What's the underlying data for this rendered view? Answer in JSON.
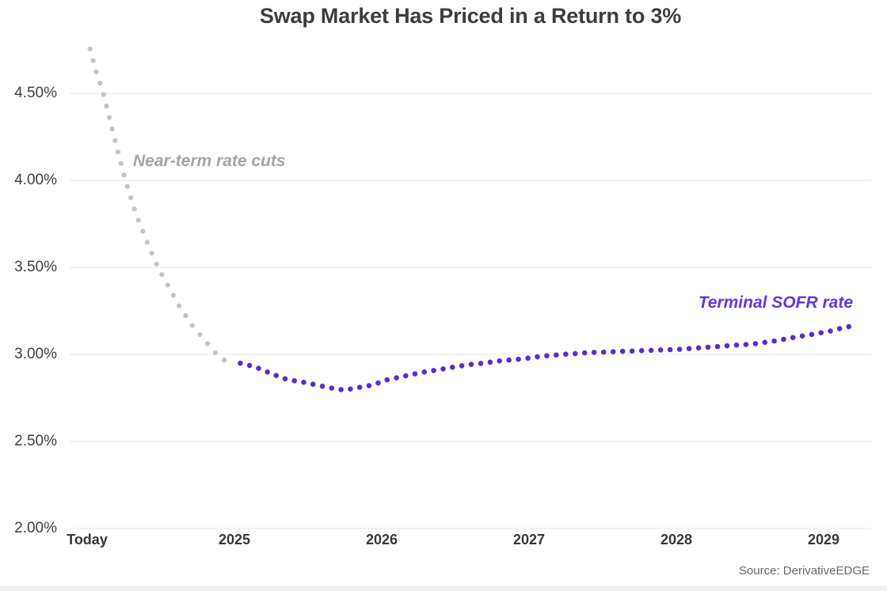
{
  "chart_data": {
    "type": "line",
    "title": "Swap Market Has Priced in a Return to 3%",
    "source": "Source: DerivativeEDGE",
    "x_axis": {
      "tick_labels": [
        "Today",
        "2025",
        "2026",
        "2027",
        "2028",
        "2029"
      ],
      "tick_values": [
        0,
        1,
        2,
        3,
        4,
        5
      ]
    },
    "y_axis": {
      "tick_labels": [
        "4.50%",
        "4.00%",
        "3.50%",
        "3.00%",
        "2.50%",
        "2.00%"
      ],
      "tick_values": [
        4.5,
        4.0,
        3.5,
        3.0,
        2.5,
        2.0
      ],
      "ylim": [
        2.0,
        4.95
      ]
    },
    "grid": "horizontal",
    "gridline_color": "#e7e6e4",
    "series": [
      {
        "name": "Near-term rate cuts",
        "style": "dotted",
        "color": "#c3c2c0",
        "points": [
          [
            0.02,
            4.755
          ],
          [
            0.06,
            4.63
          ],
          [
            0.11,
            4.5
          ],
          [
            0.18,
            4.26
          ],
          [
            0.26,
            4.0
          ],
          [
            0.33,
            3.81
          ],
          [
            0.41,
            3.64
          ],
          [
            0.48,
            3.5
          ],
          [
            0.56,
            3.38
          ],
          [
            0.63,
            3.27
          ],
          [
            0.72,
            3.16
          ],
          [
            0.81,
            3.07
          ],
          [
            0.9,
            2.98
          ],
          [
            0.99,
            2.945
          ]
        ]
      },
      {
        "name": "Terminal SOFR rate",
        "style": "dotted",
        "color": "#5a2dcb",
        "points": [
          [
            1.04,
            2.95
          ],
          [
            1.09,
            2.94
          ],
          [
            1.15,
            2.925
          ],
          [
            1.25,
            2.89
          ],
          [
            1.36,
            2.855
          ],
          [
            1.47,
            2.84
          ],
          [
            1.58,
            2.82
          ],
          [
            1.67,
            2.805
          ],
          [
            1.75,
            2.795
          ],
          [
            1.84,
            2.81
          ],
          [
            1.94,
            2.825
          ],
          [
            2.04,
            2.855
          ],
          [
            2.15,
            2.875
          ],
          [
            2.26,
            2.895
          ],
          [
            2.37,
            2.91
          ],
          [
            2.47,
            2.925
          ],
          [
            2.58,
            2.94
          ],
          [
            2.69,
            2.95
          ],
          [
            2.82,
            2.965
          ],
          [
            2.96,
            2.975
          ],
          [
            3.09,
            2.99
          ],
          [
            3.23,
            3.0
          ],
          [
            3.39,
            3.01
          ],
          [
            3.55,
            3.015
          ],
          [
            3.71,
            3.02
          ],
          [
            3.87,
            3.025
          ],
          [
            4.03,
            3.03
          ],
          [
            4.19,
            3.04
          ],
          [
            4.35,
            3.05
          ],
          [
            4.52,
            3.06
          ],
          [
            4.65,
            3.075
          ],
          [
            4.78,
            3.095
          ],
          [
            4.92,
            3.115
          ],
          [
            5.05,
            3.135
          ],
          [
            5.14,
            3.155
          ],
          [
            5.23,
            3.17
          ]
        ]
      }
    ],
    "annotations": [
      {
        "text": "Near-term rate cuts",
        "series": "Near-term rate cuts",
        "color": "#a7a5a2"
      },
      {
        "text": "Terminal SOFR rate",
        "series": "Terminal SOFR rate",
        "color": "#6334e4"
      }
    ]
  }
}
